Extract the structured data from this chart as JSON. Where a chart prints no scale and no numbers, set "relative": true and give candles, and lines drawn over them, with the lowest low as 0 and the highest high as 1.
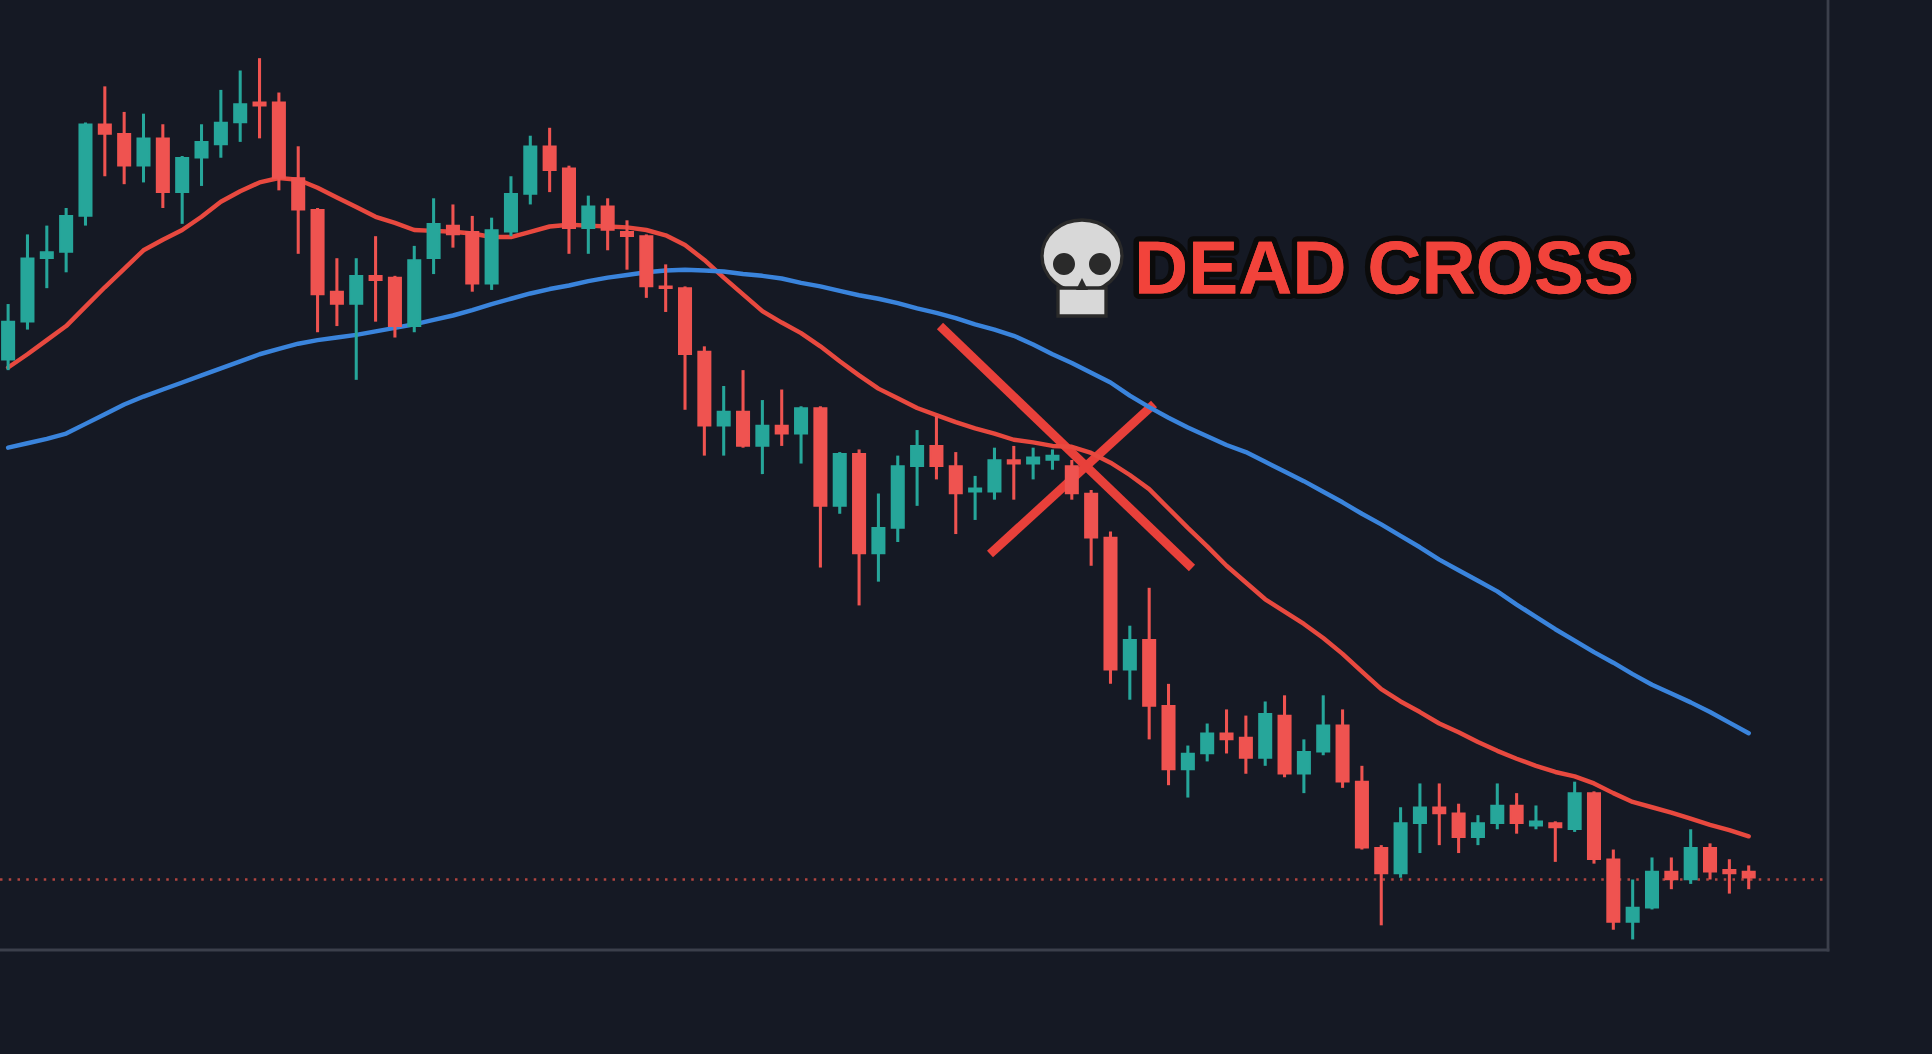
{
  "chart_data": {
    "type": "candlestick",
    "relative": true,
    "categories": [
      null,
      null,
      null,
      null,
      null,
      null,
      null,
      null,
      null,
      null,
      null,
      null,
      null,
      null,
      null,
      null,
      null,
      null,
      null,
      null,
      null,
      null,
      null,
      null,
      null,
      null,
      null,
      null,
      null,
      null,
      null,
      null,
      null,
      null,
      null,
      null,
      null,
      null,
      null,
      null,
      null,
      null,
      null,
      null,
      null,
      null,
      null,
      null,
      null,
      null,
      null,
      null,
      null,
      null,
      null,
      null,
      null,
      null,
      null,
      null,
      null,
      null,
      null,
      null,
      null,
      null,
      null,
      null,
      null,
      null,
      null,
      null,
      null,
      null,
      null,
      null,
      null,
      null,
      null,
      null,
      null,
      null,
      null,
      null,
      null,
      null,
      null,
      null,
      null,
      null,
      null
    ],
    "ohlc": [
      [
        0.658,
        0.721,
        0.646,
        0.701
      ],
      [
        0.701,
        0.8,
        0.692,
        0.773
      ],
      [
        0.773,
        0.81,
        0.739,
        0.78
      ],
      [
        0.78,
        0.83,
        0.757,
        0.821
      ],
      [
        0.821,
        0.927,
        0.81,
        0.925
      ],
      [
        0.925,
        0.968,
        0.866,
        0.914
      ],
      [
        0.914,
        0.939,
        0.857,
        0.878
      ],
      [
        0.878,
        0.937,
        0.859,
        0.909
      ],
      [
        0.909,
        0.925,
        0.83,
        0.848
      ],
      [
        0.848,
        0.889,
        0.812,
        0.887
      ],
      [
        0.887,
        0.925,
        0.855,
        0.905
      ],
      [
        0.902,
        0.964,
        0.887,
        0.927
      ],
      [
        0.927,
        0.986,
        0.905,
        0.948
      ],
      [
        0.95,
        1.0,
        0.909,
        0.946
      ],
      [
        0.95,
        0.961,
        0.85,
        0.864
      ],
      [
        0.864,
        0.9,
        0.778,
        0.828
      ],
      [
        0.828,
        0.83,
        0.689,
        0.732
      ],
      [
        0.735,
        0.773,
        0.696,
        0.721
      ],
      [
        0.721,
        0.773,
        0.635,
        0.753
      ],
      [
        0.753,
        0.798,
        0.701,
        0.748
      ],
      [
        0.751,
        0.753,
        0.683,
        0.696
      ],
      [
        0.696,
        0.787,
        0.689,
        0.771
      ],
      [
        0.773,
        0.841,
        0.755,
        0.812
      ],
      [
        0.81,
        0.834,
        0.785,
        0.8
      ],
      [
        0.803,
        0.821,
        0.735,
        0.744
      ],
      [
        0.744,
        0.819,
        0.737,
        0.805
      ],
      [
        0.803,
        0.866,
        0.798,
        0.846
      ],
      [
        0.846,
        0.912,
        0.834,
        0.9
      ],
      [
        0.9,
        0.921,
        0.848,
        0.873
      ],
      [
        0.875,
        0.878,
        0.778,
        0.807
      ],
      [
        0.807,
        0.844,
        0.778,
        0.832
      ],
      [
        0.832,
        0.841,
        0.782,
        0.805
      ],
      [
        0.803,
        0.816,
        0.76,
        0.798
      ],
      [
        0.798,
        0.8,
        0.728,
        0.741
      ],
      [
        0.741,
        0.766,
        0.712,
        0.739
      ],
      [
        0.739,
        0.741,
        0.601,
        0.664
      ],
      [
        0.667,
        0.673,
        0.549,
        0.583
      ],
      [
        0.583,
        0.628,
        0.549,
        0.599
      ],
      [
        0.599,
        0.646,
        0.558,
        0.56
      ],
      [
        0.56,
        0.612,
        0.528,
        0.583
      ],
      [
        0.583,
        0.624,
        0.56,
        0.574
      ],
      [
        0.574,
        0.605,
        0.54,
        0.603
      ],
      [
        0.603,
        0.605,
        0.422,
        0.492
      ],
      [
        0.492,
        0.553,
        0.483,
        0.551
      ],
      [
        0.551,
        0.556,
        0.379,
        0.438
      ],
      [
        0.438,
        0.506,
        0.406,
        0.467
      ],
      [
        0.467,
        0.549,
        0.451,
        0.537
      ],
      [
        0.537,
        0.578,
        0.492,
        0.56
      ],
      [
        0.56,
        0.594,
        0.522,
        0.537
      ],
      [
        0.537,
        0.553,
        0.46,
        0.506
      ],
      [
        0.508,
        0.526,
        0.476,
        0.512
      ],
      [
        0.508,
        0.558,
        0.499,
        0.544
      ],
      [
        0.544,
        0.56,
        0.499,
        0.54
      ],
      [
        0.54,
        0.558,
        0.522,
        0.547
      ],
      [
        0.544,
        0.556,
        0.533,
        0.549
      ],
      [
        0.537,
        0.544,
        0.499,
        0.506
      ],
      [
        0.506,
        0.51,
        0.424,
        0.456
      ],
      [
        0.456,
        0.463,
        0.29,
        0.306
      ],
      [
        0.306,
        0.356,
        0.272,
        0.34
      ],
      [
        0.34,
        0.399,
        0.227,
        0.265
      ],
      [
        0.265,
        0.29,
        0.175,
        0.193
      ],
      [
        0.193,
        0.22,
        0.161,
        0.211
      ],
      [
        0.211,
        0.245,
        0.202,
        0.234
      ],
      [
        0.234,
        0.261,
        0.211,
        0.227
      ],
      [
        0.229,
        0.254,
        0.188,
        0.206
      ],
      [
        0.206,
        0.27,
        0.197,
        0.256
      ],
      [
        0.254,
        0.277,
        0.184,
        0.188
      ],
      [
        0.188,
        0.227,
        0.166,
        0.213
      ],
      [
        0.213,
        0.277,
        0.209,
        0.243
      ],
      [
        0.243,
        0.261,
        0.172,
        0.179
      ],
      [
        0.179,
        0.197,
        0.102,
        0.104
      ],
      [
        0.104,
        0.107,
        0.016,
        0.075
      ],
      [
        0.075,
        0.15,
        0.07,
        0.132
      ],
      [
        0.132,
        0.177,
        0.098,
        0.15
      ],
      [
        0.15,
        0.177,
        0.107,
        0.143
      ],
      [
        0.143,
        0.154,
        0.098,
        0.116
      ],
      [
        0.116,
        0.141,
        0.107,
        0.132
      ],
      [
        0.132,
        0.177,
        0.125,
        0.152
      ],
      [
        0.152,
        0.166,
        0.12,
        0.132
      ],
      [
        0.129,
        0.152,
        0.125,
        0.134
      ],
      [
        0.132,
        0.134,
        0.088,
        0.127
      ],
      [
        0.125,
        0.179,
        0.122,
        0.166
      ],
      [
        0.166,
        0.168,
        0.086,
        0.091
      ],
      [
        0.091,
        0.102,
        0.011,
        0.02
      ],
      [
        0.02,
        0.068,
        0.0,
        0.036
      ],
      [
        0.036,
        0.093,
        0.034,
        0.077
      ],
      [
        0.077,
        0.093,
        0.057,
        0.068
      ],
      [
        0.068,
        0.125,
        0.063,
        0.104
      ],
      [
        0.104,
        0.109,
        0.068,
        0.077
      ],
      [
        0.079,
        0.091,
        0.052,
        0.075
      ],
      [
        0.077,
        0.084,
        0.057,
        0.07
      ]
    ],
    "colors": [
      "#26a69a",
      "#26a69a",
      "#26a69a",
      "#26a69a",
      "#26a69a",
      "#ef5350",
      "#ef5350",
      "#26a69a",
      "#ef5350",
      "#26a69a",
      "#26a69a",
      "#26a69a",
      "#26a69a",
      "#ef5350",
      "#ef5350",
      "#ef5350",
      "#ef5350",
      "#ef5350",
      "#26a69a",
      "#ef5350",
      "#ef5350",
      "#26a69a",
      "#26a69a",
      "#ef5350",
      "#ef5350",
      "#26a69a",
      "#26a69a",
      "#26a69a",
      "#ef5350",
      "#ef5350",
      "#26a69a",
      "#ef5350",
      "#ef5350",
      "#ef5350",
      "#ef5350",
      "#ef5350",
      "#ef5350",
      "#26a69a",
      "#ef5350",
      "#26a69a",
      "#ef5350",
      "#26a69a",
      "#ef5350",
      "#26a69a",
      "#ef5350",
      "#26a69a",
      "#26a69a",
      "#26a69a",
      "#ef5350",
      "#ef5350",
      "#26a69a",
      "#26a69a",
      "#ef5350",
      "#26a69a",
      "#26a69a",
      "#ef5350",
      "#ef5350",
      "#ef5350",
      "#26a69a",
      "#ef5350",
      "#ef5350",
      "#26a69a",
      "#26a69a",
      "#ef5350",
      "#ef5350",
      "#26a69a",
      "#ef5350",
      "#26a69a",
      "#26a69a",
      "#ef5350",
      "#ef5350",
      "#ef5350",
      "#26a69a",
      "#26a69a",
      "#ef5350",
      "#ef5350",
      "#26a69a",
      "#26a69a",
      "#ef5350",
      "#26a69a",
      "#ef5350",
      "#26a69a",
      "#ef5350",
      "#ef5350",
      "#26a69a",
      "#26a69a",
      "#ef5350",
      "#26a69a",
      "#ef5350",
      "#ef5350",
      "#ef5350"
    ],
    "series": [
      {
        "type": "line",
        "color": "#e8493f",
        "values": [
          0.649,
          0.664,
          0.68,
          0.696,
          0.718,
          0.74,
          0.761,
          0.782,
          0.794,
          0.805,
          0.82,
          0.837,
          0.849,
          0.859,
          0.864,
          0.862,
          0.853,
          0.842,
          0.831,
          0.82,
          0.813,
          0.805,
          0.804,
          0.803,
          0.801,
          0.797,
          0.797,
          0.803,
          0.809,
          0.811,
          0.81,
          0.809,
          0.808,
          0.805,
          0.799,
          0.788,
          0.771,
          0.751,
          0.732,
          0.713,
          0.7,
          0.688,
          0.673,
          0.656,
          0.64,
          0.625,
          0.614,
          0.603,
          0.595,
          0.587,
          0.58,
          0.574,
          0.567,
          0.564,
          0.56,
          0.559,
          0.552,
          0.541,
          0.527,
          0.511,
          0.489,
          0.467,
          0.446,
          0.424,
          0.405,
          0.386,
          0.372,
          0.358,
          0.342,
          0.324,
          0.304,
          0.284,
          0.27,
          0.258,
          0.245,
          0.235,
          0.224,
          0.214,
          0.205,
          0.197,
          0.19,
          0.185,
          0.177,
          0.166,
          0.156,
          0.15,
          0.144,
          0.137,
          0.13,
          0.124,
          0.117
        ]
      },
      {
        "type": "line",
        "color": "#3a84dc",
        "values": [
          0.558,
          0.563,
          0.568,
          0.574,
          0.585,
          0.596,
          0.607,
          0.616,
          0.624,
          0.632,
          0.64,
          0.648,
          0.656,
          0.664,
          0.67,
          0.676,
          0.68,
          0.683,
          0.686,
          0.69,
          0.694,
          0.698,
          0.703,
          0.708,
          0.714,
          0.721,
          0.727,
          0.733,
          0.738,
          0.742,
          0.747,
          0.751,
          0.754,
          0.757,
          0.759,
          0.76,
          0.759,
          0.758,
          0.755,
          0.753,
          0.75,
          0.745,
          0.741,
          0.736,
          0.731,
          0.727,
          0.722,
          0.716,
          0.711,
          0.705,
          0.698,
          0.692,
          0.685,
          0.675,
          0.664,
          0.654,
          0.643,
          0.632,
          0.617,
          0.604,
          0.592,
          0.581,
          0.571,
          0.561,
          0.553,
          0.542,
          0.531,
          0.52,
          0.508,
          0.496,
          0.483,
          0.471,
          0.458,
          0.445,
          0.431,
          0.419,
          0.407,
          0.395,
          0.38,
          0.366,
          0.352,
          0.339,
          0.326,
          0.314,
          0.301,
          0.289,
          0.279,
          0.269,
          0.258,
          0.246,
          0.234
        ]
      }
    ],
    "ref_lines": [
      {
        "axis": "y",
        "value": 0.068,
        "color": "#b0443f",
        "line_style": "dotted"
      }
    ],
    "annotations": [
      "DEAD CROSS"
    ]
  }
}
